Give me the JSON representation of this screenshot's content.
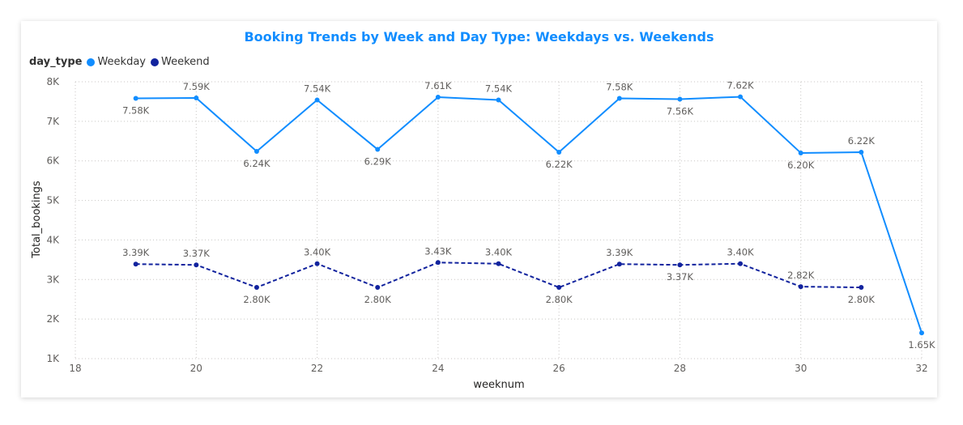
{
  "chart_data": {
    "type": "line",
    "title": "Booking Trends by Week and Day Type: Weekdays vs. Weekends",
    "xlabel": "weeknum",
    "ylabel": "Total_bookings",
    "xlim": [
      18,
      32
    ],
    "ylim": [
      1000,
      8000
    ],
    "x_ticks": [
      18,
      20,
      22,
      24,
      26,
      28,
      30,
      32
    ],
    "y_ticks": [
      {
        "value": 1000,
        "label": "1K"
      },
      {
        "value": 2000,
        "label": "2K"
      },
      {
        "value": 3000,
        "label": "3K"
      },
      {
        "value": 4000,
        "label": "4K"
      },
      {
        "value": 5000,
        "label": "5K"
      },
      {
        "value": 6000,
        "label": "6K"
      },
      {
        "value": 7000,
        "label": "7K"
      },
      {
        "value": 8000,
        "label": "8K"
      }
    ],
    "grid": true,
    "legend": {
      "title": "day_type",
      "placement": "top-left"
    },
    "series": [
      {
        "name": "Weekday",
        "color": "#118DFF",
        "dashed": false,
        "points": [
          {
            "x": 19,
            "y": 7580,
            "label": "7.58K",
            "pos": "below"
          },
          {
            "x": 20,
            "y": 7590,
            "label": "7.59K",
            "pos": "above"
          },
          {
            "x": 21,
            "y": 6240,
            "label": "6.24K",
            "pos": "below"
          },
          {
            "x": 22,
            "y": 7540,
            "label": "7.54K",
            "pos": "above"
          },
          {
            "x": 23,
            "y": 6290,
            "label": "6.29K",
            "pos": "below"
          },
          {
            "x": 24,
            "y": 7610,
            "label": "7.61K",
            "pos": "above"
          },
          {
            "x": 25,
            "y": 7540,
            "label": "7.54K",
            "pos": "above"
          },
          {
            "x": 26,
            "y": 6220,
            "label": "6.22K",
            "pos": "below"
          },
          {
            "x": 27,
            "y": 7580,
            "label": "7.58K",
            "pos": "above"
          },
          {
            "x": 28,
            "y": 7560,
            "label": "7.56K",
            "pos": "below"
          },
          {
            "x": 29,
            "y": 7620,
            "label": "7.62K",
            "pos": "above"
          },
          {
            "x": 30,
            "y": 6200,
            "label": "6.20K",
            "pos": "below"
          },
          {
            "x": 31,
            "y": 6220,
            "label": "6.22K",
            "pos": "above"
          },
          {
            "x": 32,
            "y": 1650,
            "label": "1.65K",
            "pos": "below"
          }
        ]
      },
      {
        "name": "Weekend",
        "color": "#12239E",
        "dashed": true,
        "points": [
          {
            "x": 19,
            "y": 3390,
            "label": "3.39K",
            "pos": "above"
          },
          {
            "x": 20,
            "y": 3370,
            "label": "3.37K",
            "pos": "above"
          },
          {
            "x": 21,
            "y": 2800,
            "label": "2.80K",
            "pos": "below"
          },
          {
            "x": 22,
            "y": 3400,
            "label": "3.40K",
            "pos": "above"
          },
          {
            "x": 23,
            "y": 2800,
            "label": "2.80K",
            "pos": "below"
          },
          {
            "x": 24,
            "y": 3430,
            "label": "3.43K",
            "pos": "above"
          },
          {
            "x": 25,
            "y": 3400,
            "label": "3.40K",
            "pos": "above"
          },
          {
            "x": 26,
            "y": 2800,
            "label": "2.80K",
            "pos": "below"
          },
          {
            "x": 27,
            "y": 3390,
            "label": "3.39K",
            "pos": "above"
          },
          {
            "x": 28,
            "y": 3370,
            "label": "3.37K",
            "pos": "below"
          },
          {
            "x": 29,
            "y": 3400,
            "label": "3.40K",
            "pos": "above"
          },
          {
            "x": 30,
            "y": 2820,
            "label": "2.82K",
            "pos": "above"
          },
          {
            "x": 31,
            "y": 2800,
            "label": "2.80K",
            "pos": "below"
          }
        ]
      }
    ]
  }
}
